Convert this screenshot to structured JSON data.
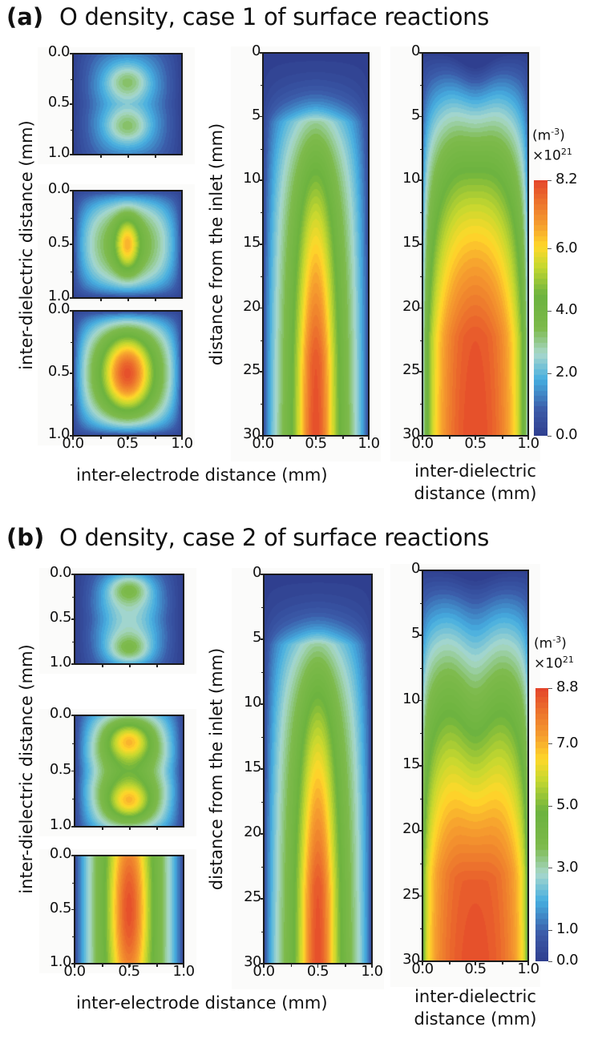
{
  "colors": {
    "palette": [
      "#2f3f8f",
      "#3b5aa8",
      "#46aee0",
      "#a8d8cc",
      "#7dba4a",
      "#6cb33f",
      "#c5d82f",
      "#ffd92a",
      "#f6a02e",
      "#ee7a2d",
      "#e4462b"
    ]
  },
  "chart_data": [
    {
      "panel": "(a)",
      "title": "O density, case 1 of surface reactions",
      "type": "heatmap",
      "cross_sections": {
        "xlabel": "inter-electrode distance (mm)",
        "ylabel": "inter-dielectric distance (mm)",
        "xlim": [
          0,
          1.0
        ],
        "ylim": [
          0,
          1.0
        ],
        "xticks": [
          "0.0",
          "0.5",
          "1.0"
        ],
        "yticks": [
          "0.0",
          "0.5",
          "1.0"
        ],
        "maps": [
          {
            "shape": "twin-lobe",
            "peak": 3.4
          },
          {
            "shape": "single-ellipse",
            "peak": 6.3
          },
          {
            "shape": "single-ellipse",
            "peak": 8.0
          }
        ]
      },
      "electrode_plane": {
        "xlabel": "inter-electrode distance (mm)",
        "ylabel": "distance from the inlet (mm)",
        "xlim": [
          0,
          1.0
        ],
        "ylim": [
          0,
          30
        ],
        "xticks": [
          "0.0",
          "0.5",
          "1.0"
        ],
        "yticks": [
          "0",
          "5",
          "10",
          "15",
          "20",
          "25",
          "30"
        ],
        "peak": 8.2
      },
      "dielectric_plane": {
        "xlabel_line1": "inter-dielectric",
        "xlabel_line2": "distance (mm)",
        "xlim": [
          0,
          1.0
        ],
        "ylim": [
          0,
          30
        ],
        "xticks": [
          "0.0",
          "0.5",
          "1.0"
        ],
        "yticks": [
          "0",
          "5",
          "10",
          "15",
          "20",
          "25",
          "30"
        ],
        "peak": 8.2
      },
      "colorbar": {
        "unit": "(m",
        "unit_exp": "-3",
        "unit_close": ")",
        "scale": "×10",
        "scale_exp": "21",
        "range": [
          0.0,
          8.2
        ],
        "ticks": [
          "8.2",
          "6.0",
          "4.0",
          "2.0",
          "0.0"
        ],
        "tick_values": [
          8.2,
          6.0,
          4.0,
          2.0,
          0.0
        ]
      }
    },
    {
      "panel": "(b)",
      "title": "O density, case 2 of surface  reactions",
      "type": "heatmap",
      "cross_sections": {
        "xlabel": "inter-electrode distance (mm)",
        "ylabel": "inter-dielectric distance (mm)",
        "xlim": [
          0,
          1.0
        ],
        "ylim": [
          0,
          1.0
        ],
        "xticks": [
          "0.0",
          "0.5",
          "1.0"
        ],
        "yticks": [
          "0.0",
          "0.5",
          "1.0"
        ],
        "maps": [
          {
            "shape": "twin-lobe",
            "peak": 4.6
          },
          {
            "shape": "twin-lobe",
            "peak": 7.6
          },
          {
            "shape": "single-column",
            "peak": 8.6
          }
        ]
      },
      "electrode_plane": {
        "xlabel": "inter-electrode distance (mm)",
        "ylabel": "distance from the inlet (mm)",
        "xlim": [
          0,
          1.0
        ],
        "ylim": [
          0,
          30
        ],
        "xticks": [
          "0.0",
          "0.5",
          "1.0"
        ],
        "yticks": [
          "0",
          "5",
          "10",
          "15",
          "20",
          "25",
          "30"
        ],
        "peak": 8.8
      },
      "dielectric_plane": {
        "xlabel_line1": "inter-dielectric",
        "xlabel_line2": "distance (mm)",
        "xlim": [
          0,
          1.0
        ],
        "ylim": [
          0,
          30
        ],
        "xticks": [
          "0.0",
          "0.5",
          "1.0"
        ],
        "yticks": [
          "0",
          "5",
          "10",
          "15",
          "20",
          "25",
          "30"
        ],
        "peak": 8.8
      },
      "colorbar": {
        "unit": "(m",
        "unit_exp": "-3",
        "unit_close": ")",
        "scale": "×10",
        "scale_exp": "21",
        "range": [
          0.0,
          8.8
        ],
        "ticks": [
          "8.8",
          "7.0",
          "5.0",
          "3.0",
          "1.0",
          "0.0"
        ],
        "tick_values": [
          8.8,
          7.0,
          5.0,
          3.0,
          1.0,
          0.0
        ]
      }
    }
  ]
}
